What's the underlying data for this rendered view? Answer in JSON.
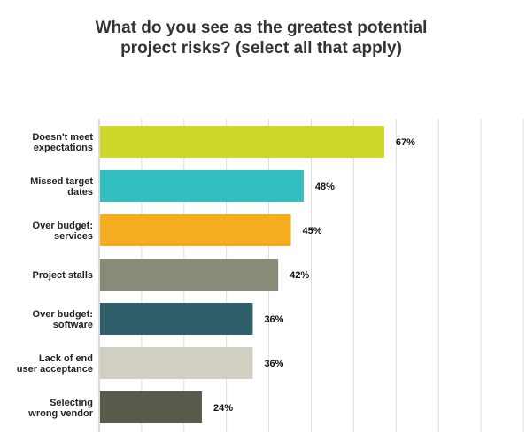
{
  "chart_data": {
    "type": "bar",
    "orientation": "horizontal",
    "title": "What do you see as the greatest potential project risks? (select all that apply)",
    "xlabel": "",
    "ylabel": "",
    "xlim": [
      0,
      100
    ],
    "grid": true,
    "categories": [
      [
        "Doesn't meet",
        "expectations"
      ],
      [
        "Missed target",
        "dates"
      ],
      [
        "Over budget:",
        "services"
      ],
      [
        "Project stalls"
      ],
      [
        "Over budget:",
        "software"
      ],
      [
        "Lack of end",
        "user acceptance"
      ],
      [
        "Selecting",
        "wrong vendor"
      ]
    ],
    "values": [
      67,
      48,
      45,
      42,
      36,
      36,
      24
    ],
    "value_labels": [
      "67%",
      "48%",
      "45%",
      "42%",
      "36%",
      "36%",
      "24%"
    ],
    "colors": [
      "#cfd62a",
      "#33bfc1",
      "#f5ae1f",
      "#8a8a78",
      "#2e5f6b",
      "#d0cfc1",
      "#5a5a4c"
    ]
  }
}
